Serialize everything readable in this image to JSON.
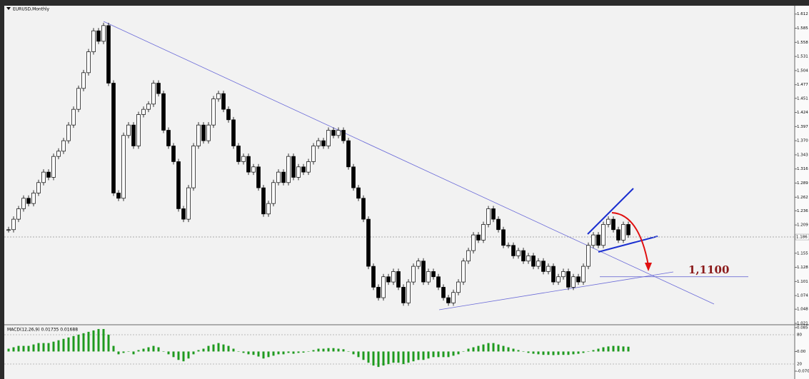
{
  "chart_data": {
    "type": "candlestick",
    "title": "EURUSD,Monthly",
    "values": [
      1.2,
      1.22,
      1.24,
      1.26,
      1.25,
      1.27,
      1.29,
      1.31,
      1.3,
      1.34,
      1.35,
      1.37,
      1.4,
      1.43,
      1.47,
      1.5,
      1.54,
      1.58,
      1.56,
      1.59,
      1.48,
      1.27,
      1.26,
      1.38,
      1.4,
      1.36,
      1.42,
      1.43,
      1.44,
      1.48,
      1.46,
      1.39,
      1.36,
      1.33,
      1.24,
      1.22,
      1.28,
      1.36,
      1.4,
      1.37,
      1.4,
      1.45,
      1.46,
      1.43,
      1.41,
      1.36,
      1.33,
      1.34,
      1.31,
      1.32,
      1.28,
      1.23,
      1.25,
      1.29,
      1.31,
      1.29,
      1.34,
      1.3,
      1.32,
      1.31,
      1.33,
      1.36,
      1.37,
      1.36,
      1.39,
      1.38,
      1.39,
      1.37,
      1.32,
      1.28,
      1.26,
      1.22,
      1.13,
      1.09,
      1.07,
      1.11,
      1.1,
      1.12,
      1.09,
      1.06,
      1.1,
      1.13,
      1.14,
      1.1,
      1.12,
      1.11,
      1.09,
      1.07,
      1.06,
      1.08,
      1.1,
      1.14,
      1.16,
      1.19,
      1.18,
      1.21,
      1.24,
      1.22,
      1.2,
      1.17,
      1.17,
      1.15,
      1.16,
      1.14,
      1.15,
      1.13,
      1.14,
      1.12,
      1.13,
      1.1,
      1.11,
      1.12,
      1.09,
      1.11,
      1.1,
      1.13,
      1.17,
      1.19,
      1.17,
      1.21,
      1.22,
      1.2,
      1.18,
      1.21,
      1.19
    ],
    "ylim": [
      1.021,
      1.628
    ],
    "yticks": [
      1.612,
      1.585,
      1.558,
      1.531,
      1.504,
      1.477,
      1.451,
      1.424,
      1.397,
      {
        "value": 1.37,
        "label": "1.370"
      },
      1.343,
      1.316,
      1.289,
      1.262,
      1.236,
      1.209,
      1.155,
      1.128,
      1.101,
      1.074,
      1.048,
      1.021
    ],
    "current_price": 1.186,
    "annotation": {
      "label": "1,1100",
      "value": 1.11,
      "color": "#8b1a1a"
    },
    "macd": {
      "title": "MACD(12,26,9) 0.01735 0.01688",
      "color": "#1f9a1f",
      "values": [
        0.01,
        0.015,
        0.02,
        0.02,
        0.02,
        0.025,
        0.03,
        0.03,
        0.03,
        0.035,
        0.04,
        0.045,
        0.05,
        0.055,
        0.06,
        0.065,
        0.07,
        0.075,
        0.08,
        0.08,
        0.06,
        0.02,
        -0.01,
        -0.005,
        0.0,
        -0.01,
        0.005,
        0.01,
        0.015,
        0.02,
        0.015,
        0.0,
        -0.01,
        -0.02,
        -0.03,
        -0.035,
        -0.025,
        -0.01,
        0.005,
        0.01,
        0.02,
        0.025,
        0.03,
        0.025,
        0.02,
        0.01,
        0.0,
        -0.005,
        -0.01,
        -0.012,
        -0.018,
        -0.025,
        -0.02,
        -0.015,
        -0.01,
        -0.01,
        -0.005,
        -0.008,
        -0.005,
        -0.004,
        0.0,
        0.005,
        0.01,
        0.01,
        0.012,
        0.012,
        0.01,
        0.008,
        0.0,
        -0.01,
        -0.02,
        -0.03,
        -0.04,
        -0.05,
        -0.055,
        -0.05,
        -0.045,
        -0.04,
        -0.04,
        -0.045,
        -0.04,
        -0.035,
        -0.03,
        -0.03,
        -0.025,
        -0.02,
        -0.02,
        -0.02,
        -0.02,
        -0.015,
        -0.01,
        0.0,
        0.01,
        0.015,
        0.02,
        0.025,
        0.03,
        0.03,
        0.025,
        0.02,
        0.015,
        0.01,
        0.005,
        0.0,
        -0.005,
        -0.008,
        -0.01,
        -0.012,
        -0.012,
        -0.013,
        -0.012,
        -0.012,
        -0.012,
        -0.01,
        -0.008,
        -0.005,
        0.0,
        0.005,
        0.01,
        0.015,
        0.018,
        0.02,
        0.02,
        0.018,
        0.017
      ],
      "ylim": [
        -0.07,
        0.085
      ],
      "yticks": [
        0.085,
        {
          "value": 0,
          "label": "0.00"
        },
        {
          "value": -0.07,
          "label": "-0.070"
        }
      ],
      "stoch_ylim": [
        0,
        100
      ],
      "stoch_ticks": [
        80,
        20
      ]
    }
  }
}
